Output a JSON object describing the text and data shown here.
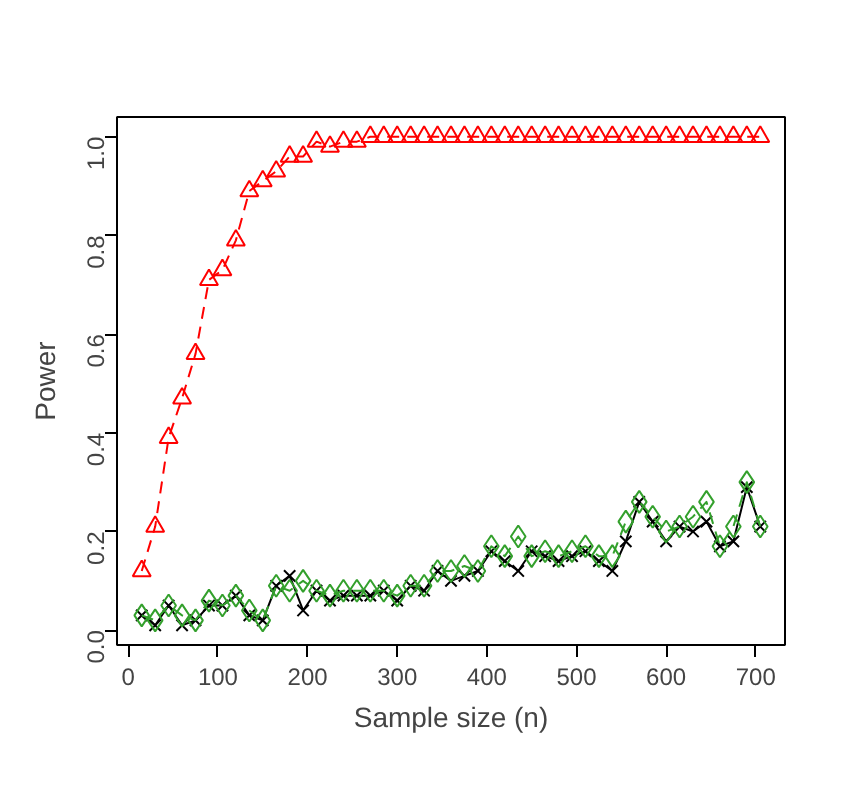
{
  "chart_data": {
    "type": "line",
    "xlabel": "Sample size (n)",
    "ylabel": "Power",
    "x": [
      15,
      30,
      45,
      60,
      75,
      90,
      105,
      120,
      135,
      150,
      165,
      180,
      195,
      210,
      225,
      240,
      255,
      270,
      285,
      300,
      315,
      330,
      345,
      360,
      375,
      390,
      405,
      420,
      435,
      450,
      465,
      480,
      495,
      510,
      525,
      540,
      555,
      570,
      585,
      600,
      615,
      630,
      645,
      660,
      675,
      690,
      705
    ],
    "series": [
      {
        "color": "#ff0000",
        "marker": "triangle",
        "line_style": "dashed",
        "values": [
          0.12,
          0.21,
          0.39,
          0.47,
          0.56,
          0.71,
          0.73,
          0.79,
          0.89,
          0.91,
          0.93,
          0.96,
          0.96,
          0.99,
          0.98,
          0.99,
          0.99,
          1.0,
          1.0,
          1.0,
          1.0,
          1.0,
          1.0,
          1.0,
          1.0,
          1.0,
          1.0,
          1.0,
          1.0,
          1.0,
          1.0,
          1.0,
          1.0,
          1.0,
          1.0,
          1.0,
          1.0,
          1.0,
          1.0,
          1.0,
          1.0,
          1.0,
          1.0,
          1.0,
          1.0,
          1.0,
          1.0
        ]
      },
      {
        "color": "#000000",
        "marker": "cross",
        "line_style": "solid",
        "values": [
          0.03,
          0.01,
          0.05,
          0.01,
          0.02,
          0.05,
          0.05,
          0.07,
          0.03,
          0.02,
          0.09,
          0.11,
          0.04,
          0.08,
          0.06,
          0.07,
          0.07,
          0.07,
          0.08,
          0.06,
          0.09,
          0.08,
          0.12,
          0.1,
          0.11,
          0.12,
          0.16,
          0.14,
          0.12,
          0.16,
          0.15,
          0.14,
          0.15,
          0.16,
          0.14,
          0.12,
          0.18,
          0.26,
          0.22,
          0.18,
          0.21,
          0.2,
          0.22,
          0.17,
          0.18,
          0.29,
          0.21
        ]
      },
      {
        "color": "#33a02c",
        "marker": "diamond",
        "line_style": "dashed",
        "values": [
          0.03,
          0.02,
          0.05,
          0.03,
          0.02,
          0.06,
          0.05,
          0.07,
          0.04,
          0.02,
          0.09,
          0.08,
          0.1,
          0.08,
          0.07,
          0.08,
          0.08,
          0.08,
          0.08,
          0.07,
          0.09,
          0.09,
          0.12,
          0.12,
          0.13,
          0.12,
          0.17,
          0.15,
          0.19,
          0.15,
          0.16,
          0.15,
          0.16,
          0.17,
          0.15,
          0.15,
          0.22,
          0.26,
          0.23,
          0.2,
          0.21,
          0.23,
          0.26,
          0.17,
          0.21,
          0.3,
          0.21
        ]
      }
    ],
    "xlim": [
      -12.6,
      732.6
    ],
    "ylim": [
      -0.03,
      1.04
    ],
    "xticks": [
      0,
      100,
      200,
      300,
      400,
      500,
      600,
      700
    ],
    "yticks": [
      {
        "value": 0,
        "label": "0.0"
      },
      {
        "value": 0.2,
        "label": "0.2"
      },
      {
        "value": 0.4,
        "label": "0.4"
      },
      {
        "value": 0.6,
        "label": "0.6"
      },
      {
        "value": 0.8,
        "label": "0.8"
      },
      {
        "value": 1,
        "label": "1.0"
      }
    ],
    "grid": false
  }
}
